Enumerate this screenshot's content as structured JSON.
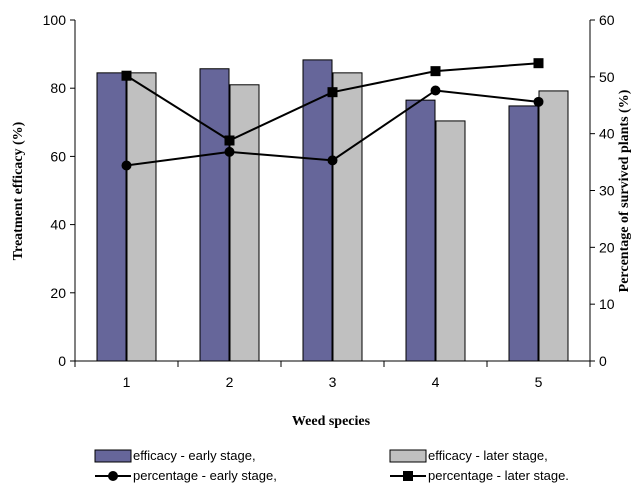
{
  "chart_data": {
    "type": "bar",
    "categories": [
      "1",
      "2",
      "3",
      "4",
      "5"
    ],
    "xlabel": "Weed species",
    "ylabel": "Treatment efficacy (%)",
    "y2label": "Percentage of survived plants (%)",
    "ylim": [
      0,
      100
    ],
    "y2lim": [
      0,
      60
    ],
    "yticks": [
      "0",
      "20",
      "40",
      "60",
      "80",
      "100"
    ],
    "y2ticks": [
      "0",
      "10",
      "20",
      "30",
      "40",
      "50",
      "60"
    ],
    "grid": false,
    "legend_position": "bottom",
    "series": [
      {
        "name": "efficacy - early stage,",
        "kind": "bar",
        "axis": "left",
        "color": "#66669a",
        "values": [
          84.5,
          85.7,
          88.3,
          76.5,
          74.8
        ]
      },
      {
        "name": "efficacy - later stage,",
        "kind": "bar",
        "axis": "left",
        "color": "#c0c0c0",
        "values": [
          84.5,
          81.0,
          84.5,
          70.4,
          79.2
        ]
      },
      {
        "name": "percentage - early stage,",
        "kind": "line",
        "marker": "circle",
        "axis": "right",
        "color": "#000000",
        "values": [
          34.4,
          36.8,
          35.3,
          47.6,
          45.6
        ]
      },
      {
        "name": "percentage - later stage.",
        "kind": "line",
        "marker": "square",
        "axis": "right",
        "color": "#000000",
        "values": [
          50.2,
          38.8,
          47.3,
          51.0,
          52.4
        ]
      }
    ]
  }
}
